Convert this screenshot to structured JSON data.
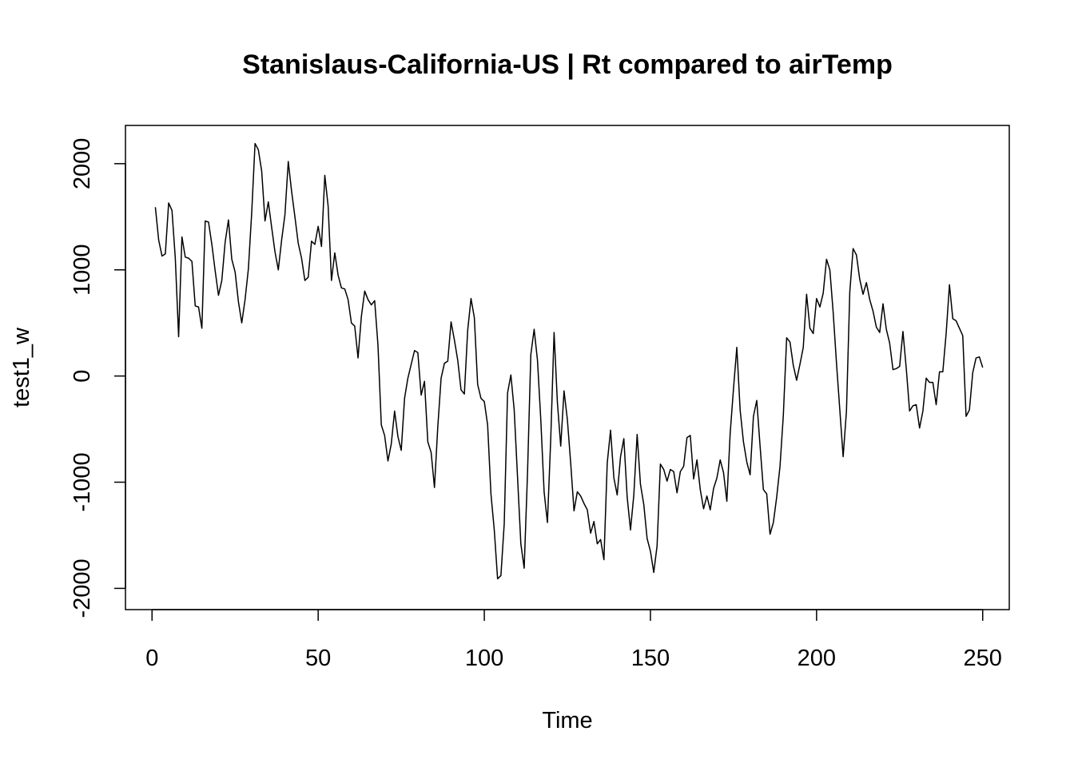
{
  "chart_data": {
    "type": "line",
    "title": "Stanislaus-California-US | Rt compared to airTemp",
    "xlabel": "Time",
    "ylabel": "test1_w",
    "xlim": [
      -8,
      258
    ],
    "ylim": [
      -2200,
      2360
    ],
    "x_ticks": [
      0,
      50,
      100,
      150,
      200,
      250
    ],
    "x_tick_labels": [
      "0",
      "50",
      "100",
      "150",
      "200",
      "250"
    ],
    "y_ticks": [
      -2000,
      -1000,
      0,
      1000,
      2000
    ],
    "y_tick_labels": [
      "-2000",
      "-1000",
      "0",
      "1000",
      "2000"
    ],
    "grid": false,
    "legend": "none",
    "colors": {
      "line": "#000000",
      "background": "#ffffff"
    },
    "series": [
      {
        "x_start": 1,
        "x_step": 1,
        "values": [
          1590,
          1280,
          1130,
          1150,
          1630,
          1560,
          1110,
          370,
          1310,
          1120,
          1110,
          1080,
          660,
          650,
          450,
          1460,
          1450,
          1240,
          990,
          760,
          900,
          1260,
          1470,
          1100,
          980,
          700,
          500,
          720,
          1010,
          1540,
          2190,
          2130,
          1930,
          1460,
          1640,
          1400,
          1170,
          1000,
          1280,
          1520,
          2020,
          1740,
          1500,
          1250,
          1110,
          900,
          930,
          1270,
          1240,
          1410,
          1220,
          1890,
          1600,
          900,
          1160,
          950,
          830,
          820,
          720,
          500,
          470,
          170,
          560,
          800,
          720,
          670,
          710,
          290,
          -460,
          -560,
          -800,
          -640,
          -330,
          -570,
          -700,
          -210,
          -20,
          110,
          240,
          220,
          -180,
          -50,
          -620,
          -720,
          -1050,
          -480,
          -20,
          120,
          140,
          510,
          340,
          150,
          -130,
          -170,
          430,
          730,
          550,
          -80,
          -210,
          -240,
          -460,
          -1110,
          -1450,
          -1910,
          -1880,
          -1390,
          -160,
          10,
          -320,
          -950,
          -1580,
          -1810,
          -920,
          200,
          440,
          150,
          -410,
          -1090,
          -1380,
          -590,
          410,
          -250,
          -660,
          -140,
          -410,
          -820,
          -1270,
          -1090,
          -1130,
          -1200,
          -1260,
          -1480,
          -1370,
          -1580,
          -1540,
          -1730,
          -820,
          -510,
          -960,
          -1120,
          -760,
          -590,
          -1140,
          -1450,
          -1120,
          -550,
          -1020,
          -1210,
          -1530,
          -1650,
          -1850,
          -1600,
          -830,
          -880,
          -990,
          -880,
          -900,
          -1100,
          -900,
          -850,
          -580,
          -560,
          -970,
          -790,
          -1070,
          -1250,
          -1130,
          -1260,
          -1060,
          -960,
          -790,
          -910,
          -1180,
          -540,
          -120,
          270,
          -320,
          -620,
          -810,
          -930,
          -380,
          -230,
          -660,
          -1070,
          -1110,
          -1490,
          -1380,
          -1140,
          -850,
          -370,
          360,
          320,
          100,
          -40,
          110,
          270,
          770,
          450,
          400,
          730,
          650,
          780,
          1100,
          1000,
          600,
          120,
          -320,
          -760,
          -330,
          790,
          1200,
          1140,
          910,
          770,
          880,
          720,
          610,
          460,
          410,
          680,
          440,
          310,
          60,
          70,
          90,
          420,
          70,
          -330,
          -280,
          -270,
          -490,
          -330,
          -20,
          -60,
          -60,
          -270,
          40,
          40,
          400,
          860,
          540,
          520,
          450,
          380,
          -380,
          -320,
          30,
          170,
          180,
          80
        ]
      }
    ]
  }
}
